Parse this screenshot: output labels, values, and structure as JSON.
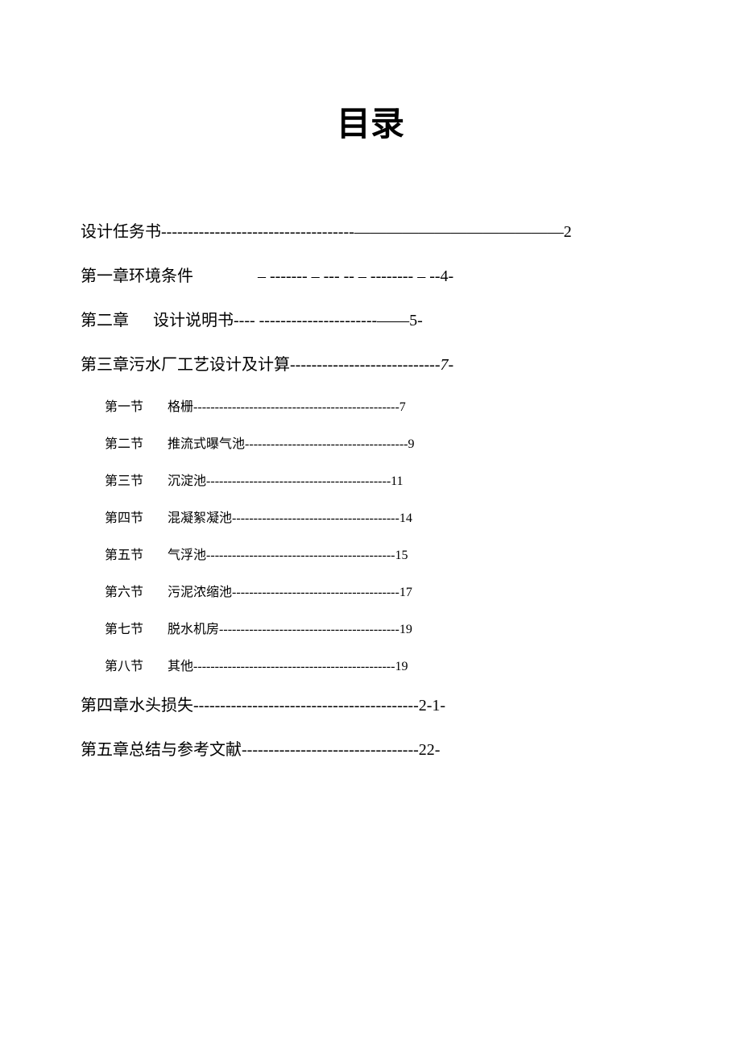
{
  "title": "目录",
  "typography": {
    "title_fontsize": 42,
    "level1_fontsize": 20,
    "level2_fontsize": 16,
    "font_family_title": "SimHei",
    "font_family_body": "SimSun",
    "text_color": "#000000",
    "background_color": "#ffffff"
  },
  "entries": [
    {
      "level": 1,
      "label": "设计任务书",
      "dashes": " ------------------------------------—————————————",
      "page": "2"
    },
    {
      "level": 1,
      "label": "第一章环境条件",
      "spacer": "wide",
      "dashes": "– ------- – --- -- – -------- – --",
      "page": "4-"
    },
    {
      "level": 1,
      "label": "第二章",
      "spacer": "normal",
      "label2": "设计说明书",
      "dashes": " ---- ----------------------——",
      "page": "5-"
    },
    {
      "level": 1,
      "label": "第三章污水厂工艺设计及计算",
      "dashes": "----------------------------",
      "page": "7-",
      "page_style": "italic"
    },
    {
      "level": 2,
      "label": "第一节",
      "spacer": "normal",
      "label2": "格栅",
      "dashes": "------------------------------------------------",
      "page": "7"
    },
    {
      "level": 2,
      "label": "第二节",
      "spacer": "normal",
      "label2": "推流式曝气池",
      "dashes": "--------------------------------------",
      "page": "9"
    },
    {
      "level": 2,
      "label": "第三节",
      "spacer": "normal",
      "label2": "沉淀池",
      "dashes": " -------------------------------------------",
      "page": "11"
    },
    {
      "level": 2,
      "label": "第四节",
      "spacer": "normal",
      "label2": "混凝絮凝池",
      "dashes": " ---------------------------------------",
      "page": "14"
    },
    {
      "level": 2,
      "label": "第五节",
      "spacer": "normal",
      "label2": "气浮池",
      "dashes": " --------------------------------------------",
      "page": "15"
    },
    {
      "level": 2,
      "label": "第六节",
      "spacer": "normal",
      "label2": "污泥浓缩池",
      "dashes": " ---------------------------------------",
      "page": "17"
    },
    {
      "level": 2,
      "label": "第七节",
      "spacer": "normal",
      "label2": "脱水机房",
      "dashes": " ------------------------------------------",
      "page": "19"
    },
    {
      "level": 2,
      "label": "第八节",
      "spacer": "normal",
      "label2": "其他",
      "dashes": " -----------------------------------------------",
      "page": "19"
    },
    {
      "level": 1,
      "label": "第四章水头损失",
      "dashes": "------------------------------------------",
      "page": "2-1-"
    },
    {
      "level": 1,
      "label": "第五章总结与参考文献",
      "dashes": " ---------------------------------",
      "page": "22-"
    }
  ]
}
